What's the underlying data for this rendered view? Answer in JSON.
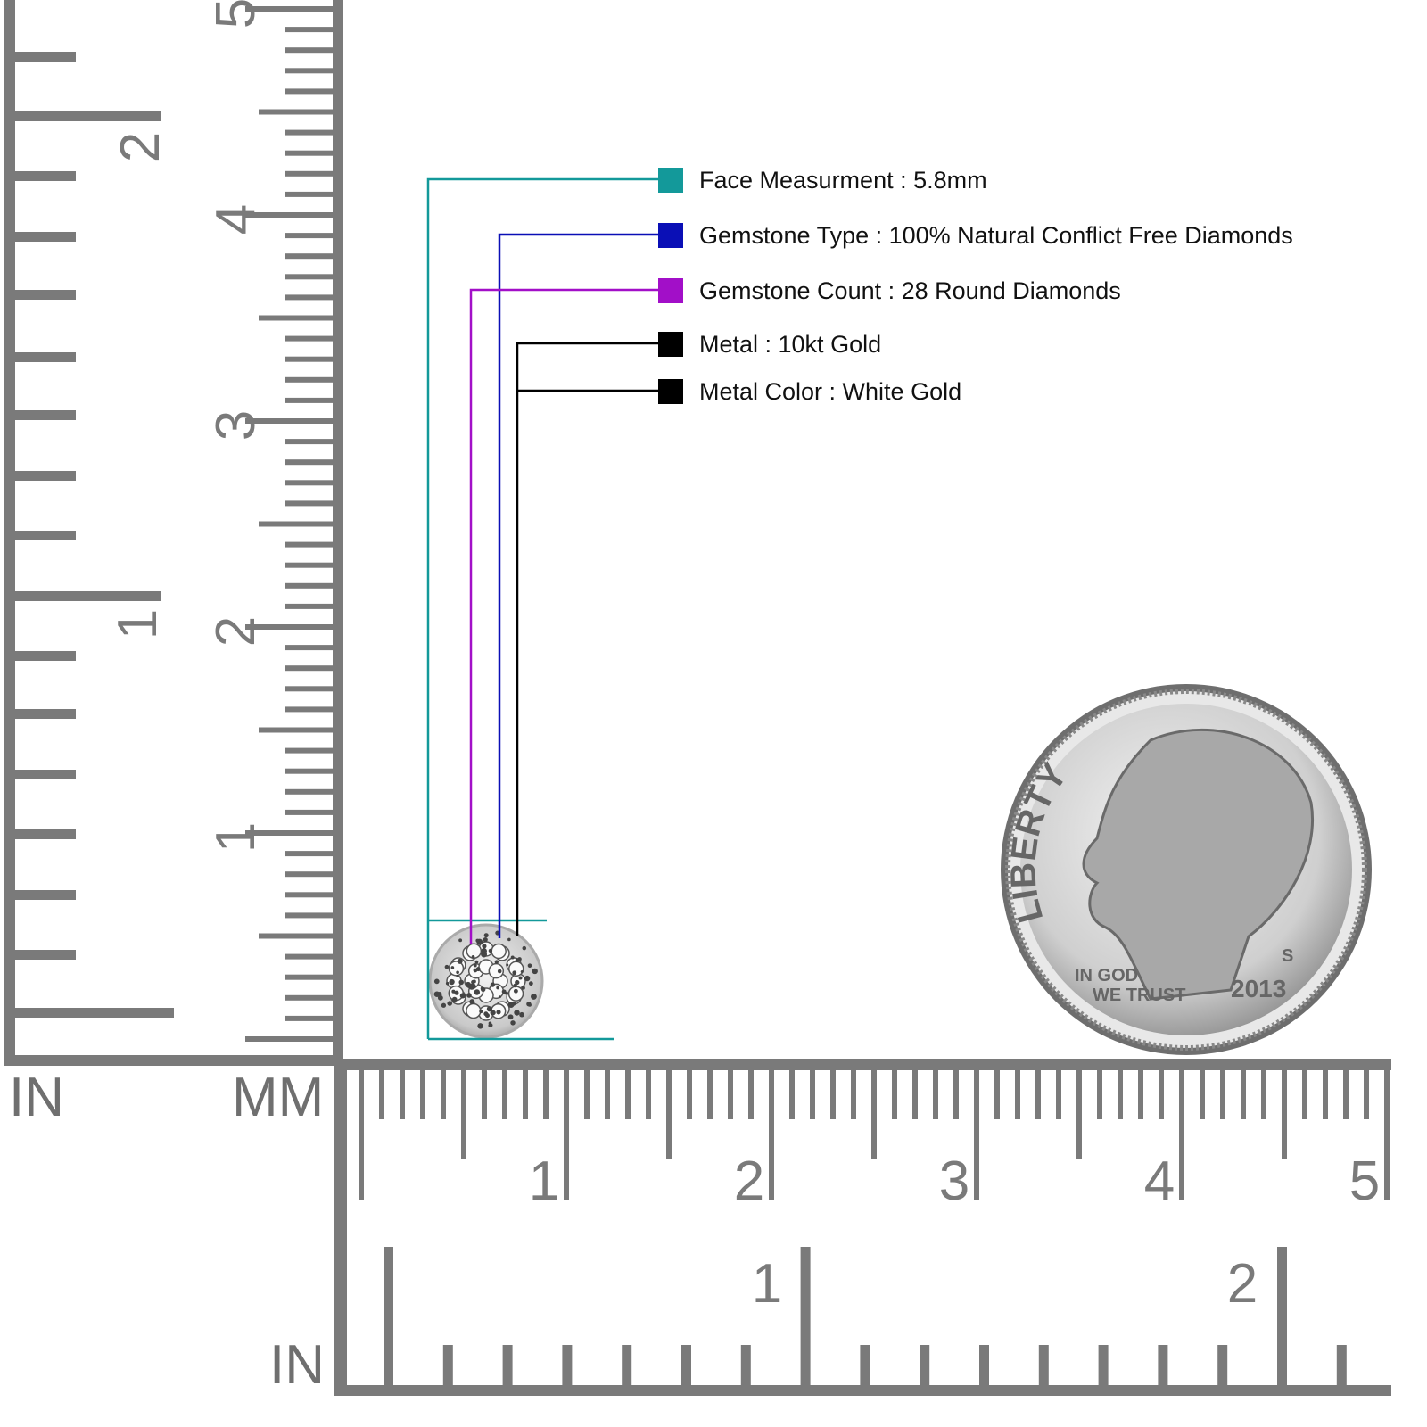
{
  "legend": [
    {
      "text": "Face Measurment : 5.8mm",
      "color": "#13999a"
    },
    {
      "text": "Gemstone Type : 100% Natural Conflict Free Diamonds",
      "color": "#0a0fb6"
    },
    {
      "text": "Gemstone Count : 28 Round Diamonds",
      "color": "#a20fc8"
    },
    {
      "text": "Metal : 10kt Gold",
      "color": "#000000"
    },
    {
      "text": "Metal Color : White Gold",
      "color": "#000000"
    }
  ],
  "rulers": {
    "left_unit_in": "IN",
    "left_unit_mm": "MM",
    "bottom_unit_in": "IN",
    "vertical_in_labels": [
      "1",
      "2"
    ],
    "vertical_mm_labels": [
      "1",
      "2",
      "3",
      "4",
      "5"
    ],
    "horizontal_mm_labels": [
      "1",
      "2",
      "3",
      "4",
      "5"
    ],
    "horizontal_in_labels": [
      "1",
      "2"
    ],
    "color": "#7a7a7a"
  },
  "coin": {
    "legend_text": "LIBERTY",
    "motto_line1": "IN GOD",
    "motto_line2": "WE TRUST",
    "year": "2013",
    "mint_mark": "S"
  }
}
